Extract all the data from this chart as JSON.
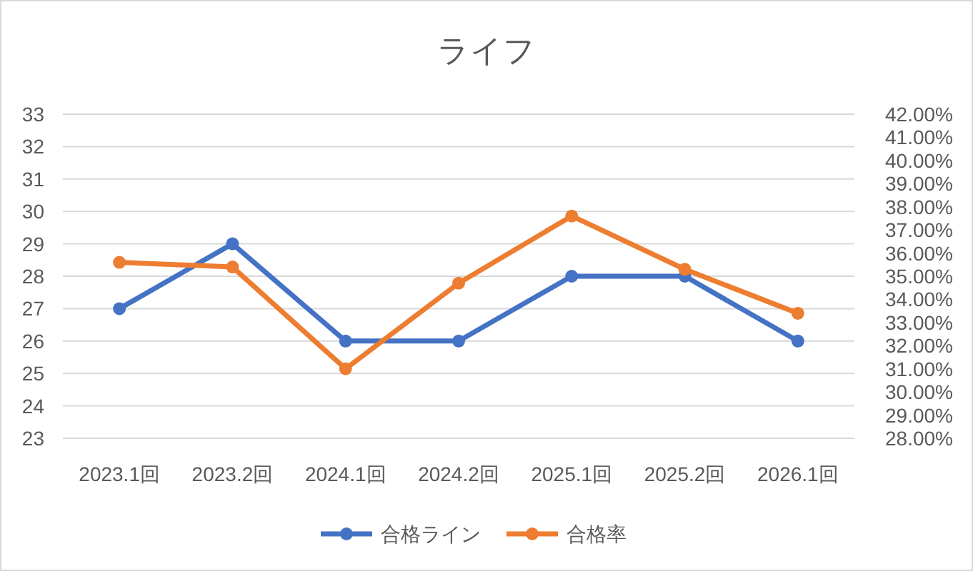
{
  "chart_data": {
    "type": "line",
    "title": "ライフ",
    "categories": [
      "2023.1回",
      "2023.2回",
      "2024.1回",
      "2024.2回",
      "2025.1回",
      "2025.2回",
      "2026.1回"
    ],
    "series": [
      {
        "name": "合格ライン",
        "color": "#4472c4",
        "values": [
          27,
          29,
          26,
          26,
          28,
          28,
          26
        ]
      },
      {
        "name": "合格率",
        "color": "#ed7d31",
        "axis": "y2",
        "values": [
          35.6,
          35.4,
          31.0,
          34.7,
          37.6,
          35.3,
          33.4
        ]
      }
    ],
    "ylim": [
      23,
      33
    ],
    "yticks": [
      23,
      24,
      25,
      26,
      27,
      28,
      29,
      30,
      31,
      32,
      33
    ],
    "y2lim": [
      28,
      42
    ],
    "y2ticks": [
      {
        "value": 28,
        "label": "28.00%"
      },
      {
        "value": 29,
        "label": "29.00%"
      },
      {
        "value": 30,
        "label": "30.00%"
      },
      {
        "value": 31,
        "label": "31.00%"
      },
      {
        "value": 32,
        "label": "32.00%"
      },
      {
        "value": 33,
        "label": "33.00%"
      },
      {
        "value": 34,
        "label": "34.00%"
      },
      {
        "value": 35,
        "label": "35.00%"
      },
      {
        "value": 36,
        "label": "36.00%"
      },
      {
        "value": 37,
        "label": "37.00%"
      },
      {
        "value": 38,
        "label": "38.00%"
      },
      {
        "value": 39,
        "label": "39.00%"
      },
      {
        "value": 40,
        "label": "40.00%"
      },
      {
        "value": 41,
        "label": "41.00%"
      },
      {
        "value": 42,
        "label": "42.00%"
      }
    ],
    "grid": "y",
    "legend": "bottom",
    "marker": "circle"
  }
}
